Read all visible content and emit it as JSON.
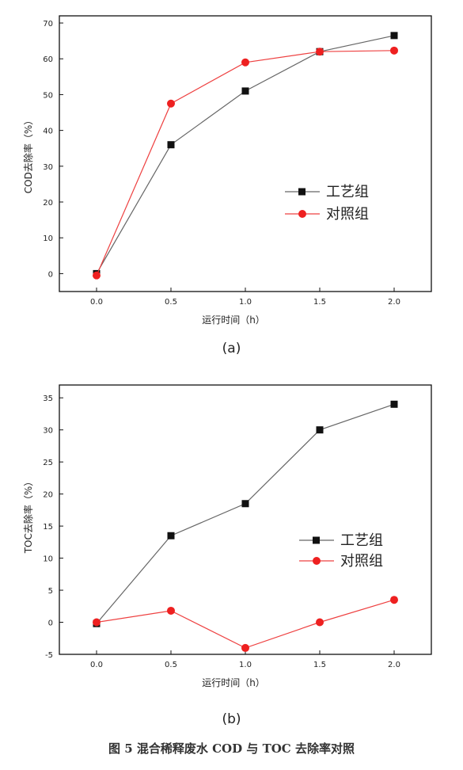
{
  "chart_data": [
    {
      "type": "line",
      "panel_label": "(a)",
      "xlabel": "运行时间（h）",
      "ylabel": "COD去除率（%）",
      "x": [
        0.0,
        0.5,
        1.0,
        1.5,
        2.0
      ],
      "xticks": [
        "0.0",
        "0.5",
        "1.0",
        "1.5",
        "2.0"
      ],
      "xlim": [
        -0.25,
        2.25
      ],
      "ylim": [
        -5,
        72
      ],
      "yticks": [
        0,
        10,
        20,
        30,
        40,
        50,
        60,
        70
      ],
      "legend_position": "center-right",
      "series": [
        {
          "name": "工艺组",
          "marker": "square",
          "color": "#111111",
          "line_color": "#666666",
          "values": [
            0,
            36,
            51,
            62,
            66.5
          ]
        },
        {
          "name": "对照组",
          "marker": "circle",
          "color": "#ee2020",
          "line_color": "#ee4040",
          "values": [
            -0.5,
            47.5,
            59,
            62,
            62.3
          ]
        }
      ]
    },
    {
      "type": "line",
      "panel_label": "(b)",
      "xlabel": "运行时间（h）",
      "ylabel": "TOC去除率（%）",
      "x": [
        0.0,
        0.5,
        1.0,
        1.5,
        2.0
      ],
      "xticks": [
        "0.0",
        "0.5",
        "1.0",
        "1.5",
        "2.0"
      ],
      "xlim": [
        -0.25,
        2.25
      ],
      "ylim": [
        -5,
        37
      ],
      "yticks": [
        -5,
        0,
        5,
        10,
        15,
        20,
        25,
        30,
        35
      ],
      "legend_position": "center-right",
      "series": [
        {
          "name": "工艺组",
          "marker": "square",
          "color": "#111111",
          "line_color": "#666666",
          "values": [
            -0.2,
            13.5,
            18.5,
            30,
            34
          ]
        },
        {
          "name": "对照组",
          "marker": "circle",
          "color": "#ee2020",
          "line_color": "#ee4040",
          "values": [
            0,
            1.8,
            -4,
            0,
            3.5
          ]
        }
      ]
    }
  ],
  "figure_caption": "图 5  混合稀释废水 COD 与 TOC 去除率对照"
}
